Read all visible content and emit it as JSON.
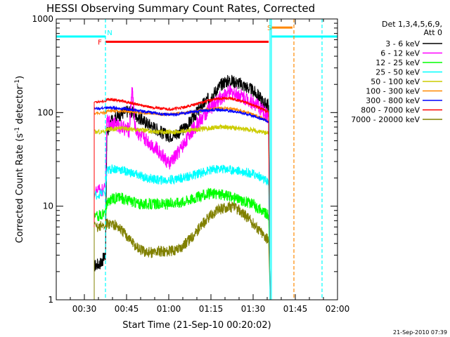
{
  "chart_data": {
    "type": "line",
    "title": "HESSI Observing Summary Count Rates, Corrected",
    "xlabel": "Start Time (21-Sep-10 00:20:02)",
    "ylabel_main": "Corrected Count Rate (s",
    "ylabel_sup1": "-1",
    "ylabel_mid": " detector",
    "ylabel_sup2": "-1",
    "ylabel_end": ")",
    "yscale": "log",
    "ylim": [
      1,
      1000
    ],
    "xlim_minutes": [
      20,
      120
    ],
    "x_tick_labels": [
      "00:30",
      "00:45",
      "01:00",
      "01:15",
      "01:30",
      "01:45",
      "02:00"
    ],
    "x_tick_minutes": [
      30,
      45,
      60,
      75,
      90,
      105,
      120
    ],
    "y_tick_labels": [
      "1",
      "10",
      "100",
      "1000"
    ],
    "y_tick_values": [
      1,
      10,
      100,
      1000
    ],
    "legend_title_line1": "Det 1,3,4,5,6,9,",
    "legend_title_line2": "Att 0",
    "timestamp": "21-Sep-2010 07:39",
    "series": [
      {
        "name": "3 - 6 keV",
        "color": "#000000",
        "points": [
          [
            33.5,
            2.3
          ],
          [
            36,
            2.5
          ],
          [
            37.5,
            3
          ],
          [
            38,
            60
          ],
          [
            40,
            85
          ],
          [
            42,
            92
          ],
          [
            44,
            100
          ],
          [
            46,
            105
          ],
          [
            48,
            95
          ],
          [
            50,
            85
          ],
          [
            52,
            78
          ],
          [
            54,
            72
          ],
          [
            56,
            66
          ],
          [
            58,
            60
          ],
          [
            60,
            56
          ],
          [
            62,
            58
          ],
          [
            64,
            62
          ],
          [
            66,
            70
          ],
          [
            68,
            82
          ],
          [
            70,
            100
          ],
          [
            72,
            120
          ],
          [
            74,
            140
          ],
          [
            76,
            160
          ],
          [
            78,
            190
          ],
          [
            80,
            215
          ],
          [
            82,
            220
          ],
          [
            84,
            210
          ],
          [
            86,
            200
          ],
          [
            88,
            185
          ],
          [
            90,
            170
          ],
          [
            92,
            150
          ],
          [
            94,
            125
          ],
          [
            95.5,
            120
          ]
        ]
      },
      {
        "name": "6 - 12 keV",
        "color": "#ff00ff",
        "points": [
          [
            33.5,
            14
          ],
          [
            37.5,
            15
          ],
          [
            38,
            80
          ],
          [
            40,
            78
          ],
          [
            42,
            72
          ],
          [
            44,
            68
          ],
          [
            46,
            65
          ],
          [
            47,
            190
          ],
          [
            48,
            70
          ],
          [
            50,
            55
          ],
          [
            52,
            52
          ],
          [
            54,
            45
          ],
          [
            56,
            40
          ],
          [
            58,
            34
          ],
          [
            60,
            28
          ],
          [
            62,
            33
          ],
          [
            64,
            40
          ],
          [
            66,
            50
          ],
          [
            68,
            62
          ],
          [
            70,
            75
          ],
          [
            72,
            88
          ],
          [
            74,
            105
          ],
          [
            76,
            120
          ],
          [
            78,
            140
          ],
          [
            80,
            155
          ],
          [
            82,
            165
          ],
          [
            84,
            160
          ],
          [
            86,
            150
          ],
          [
            88,
            140
          ],
          [
            90,
            128
          ],
          [
            92,
            115
          ],
          [
            94,
            100
          ],
          [
            95.5,
            88
          ]
        ]
      },
      {
        "name": "12 - 25 keV",
        "color": "#00ff00",
        "points": [
          [
            33.5,
            7.5
          ],
          [
            37.5,
            8.5
          ],
          [
            38,
            11
          ],
          [
            40,
            12
          ],
          [
            42,
            12.5
          ],
          [
            44,
            12
          ],
          [
            46,
            11.5
          ],
          [
            48,
            11
          ],
          [
            50,
            10.5
          ],
          [
            52,
            10.5
          ],
          [
            54,
            10.5
          ],
          [
            56,
            10.5
          ],
          [
            58,
            10.5
          ],
          [
            60,
            10.5
          ],
          [
            62,
            11
          ],
          [
            64,
            11
          ],
          [
            66,
            11.5
          ],
          [
            68,
            12
          ],
          [
            70,
            12.5
          ],
          [
            72,
            13
          ],
          [
            74,
            13.5
          ],
          [
            76,
            13.5
          ],
          [
            78,
            13.5
          ],
          [
            80,
            13
          ],
          [
            82,
            12.5
          ],
          [
            84,
            12
          ],
          [
            86,
            11.5
          ],
          [
            88,
            11
          ],
          [
            90,
            10.5
          ],
          [
            92,
            9.5
          ],
          [
            94,
            8.5
          ],
          [
            95.5,
            8
          ]
        ]
      },
      {
        "name": "25 - 50 keV",
        "color": "#00ffff",
        "points": [
          [
            33.5,
            13
          ],
          [
            37.5,
            14
          ],
          [
            38,
            24
          ],
          [
            40,
            25
          ],
          [
            42,
            25
          ],
          [
            44,
            24
          ],
          [
            46,
            23
          ],
          [
            48,
            22
          ],
          [
            50,
            21
          ],
          [
            52,
            20
          ],
          [
            54,
            19.5
          ],
          [
            56,
            19
          ],
          [
            58,
            19
          ],
          [
            60,
            19
          ],
          [
            62,
            19.5
          ],
          [
            64,
            20
          ],
          [
            66,
            20.5
          ],
          [
            68,
            21
          ],
          [
            70,
            22
          ],
          [
            72,
            23
          ],
          [
            74,
            24
          ],
          [
            76,
            24.5
          ],
          [
            78,
            25
          ],
          [
            80,
            25
          ],
          [
            82,
            24.5
          ],
          [
            84,
            24
          ],
          [
            86,
            23.5
          ],
          [
            88,
            23
          ],
          [
            90,
            22
          ],
          [
            92,
            21
          ],
          [
            94,
            19
          ],
          [
            95.5,
            18
          ]
        ]
      },
      {
        "name": "50 - 100 keV",
        "color": "#cccc00",
        "points": [
          [
            33.5,
            62
          ],
          [
            37.5,
            63
          ],
          [
            38,
            66
          ],
          [
            40,
            67
          ],
          [
            42,
            68
          ],
          [
            44,
            68
          ],
          [
            46,
            67
          ],
          [
            48,
            66
          ],
          [
            50,
            65
          ],
          [
            52,
            64
          ],
          [
            54,
            63
          ],
          [
            56,
            62
          ],
          [
            58,
            62
          ],
          [
            60,
            62
          ],
          [
            62,
            62
          ],
          [
            64,
            63
          ],
          [
            66,
            64
          ],
          [
            68,
            65
          ],
          [
            70,
            66
          ],
          [
            72,
            67
          ],
          [
            74,
            68
          ],
          [
            76,
            69
          ],
          [
            78,
            70
          ],
          [
            80,
            70
          ],
          [
            82,
            69
          ],
          [
            84,
            68
          ],
          [
            86,
            67
          ],
          [
            88,
            66
          ],
          [
            90,
            65
          ],
          [
            92,
            63
          ],
          [
            94,
            61
          ],
          [
            95.5,
            60
          ]
        ]
      },
      {
        "name": "100 - 300 keV",
        "color": "#ff8800",
        "points": [
          [
            33.5,
            98
          ],
          [
            37.5,
            100
          ],
          [
            38,
            103
          ],
          [
            40,
            104
          ],
          [
            42,
            104
          ],
          [
            44,
            103
          ],
          [
            46,
            102
          ],
          [
            48,
            101
          ],
          [
            50,
            100
          ],
          [
            52,
            99
          ],
          [
            54,
            98
          ],
          [
            56,
            97
          ],
          [
            58,
            96
          ],
          [
            60,
            96
          ],
          [
            62,
            97
          ],
          [
            64,
            98
          ],
          [
            66,
            100
          ],
          [
            68,
            102
          ],
          [
            70,
            104
          ],
          [
            72,
            106
          ],
          [
            74,
            108
          ],
          [
            76,
            110
          ],
          [
            78,
            112
          ],
          [
            80,
            112
          ],
          [
            82,
            111
          ],
          [
            84,
            108
          ],
          [
            86,
            104
          ],
          [
            88,
            100
          ],
          [
            90,
            96
          ],
          [
            92,
            90
          ],
          [
            94,
            85
          ],
          [
            95.5,
            80
          ]
        ]
      },
      {
        "name": "300 - 800 keV",
        "color": "#0000ff",
        "points": [
          [
            33.5,
            110
          ],
          [
            37.5,
            112
          ],
          [
            38,
            113
          ],
          [
            40,
            112
          ],
          [
            42,
            111
          ],
          [
            44,
            110
          ],
          [
            46,
            108
          ],
          [
            48,
            106
          ],
          [
            50,
            104
          ],
          [
            52,
            102
          ],
          [
            54,
            100
          ],
          [
            56,
            98
          ],
          [
            58,
            96
          ],
          [
            60,
            95
          ],
          [
            62,
            96
          ],
          [
            64,
            97
          ],
          [
            66,
            99
          ],
          [
            68,
            101
          ],
          [
            70,
            103
          ],
          [
            72,
            105
          ],
          [
            74,
            106
          ],
          [
            76,
            107
          ],
          [
            78,
            107
          ],
          [
            80,
            106
          ],
          [
            82,
            104
          ],
          [
            84,
            102
          ],
          [
            86,
            99
          ],
          [
            88,
            96
          ],
          [
            90,
            92
          ],
          [
            92,
            88
          ],
          [
            94,
            84
          ],
          [
            95.5,
            80
          ]
        ]
      },
      {
        "name": "800 - 7000 keV",
        "color": "#ff0000",
        "points": [
          [
            33.5,
            130
          ],
          [
            37.5,
            133
          ],
          [
            38,
            138
          ],
          [
            40,
            137
          ],
          [
            42,
            135
          ],
          [
            44,
            132
          ],
          [
            46,
            128
          ],
          [
            48,
            124
          ],
          [
            50,
            120
          ],
          [
            52,
            117
          ],
          [
            54,
            114
          ],
          [
            56,
            112
          ],
          [
            58,
            110
          ],
          [
            60,
            109
          ],
          [
            62,
            110
          ],
          [
            64,
            112
          ],
          [
            66,
            115
          ],
          [
            68,
            119
          ],
          [
            70,
            124
          ],
          [
            72,
            129
          ],
          [
            74,
            134
          ],
          [
            76,
            138
          ],
          [
            78,
            141
          ],
          [
            80,
            142
          ],
          [
            82,
            141
          ],
          [
            84,
            137
          ],
          [
            86,
            132
          ],
          [
            88,
            126
          ],
          [
            90,
            120
          ],
          [
            92,
            113
          ],
          [
            94,
            107
          ],
          [
            95.5,
            102
          ]
        ]
      },
      {
        "name": "7000 - 20000 keV",
        "color": "#808000",
        "points": [
          [
            33.5,
            6
          ],
          [
            37.5,
            6.2
          ],
          [
            38,
            6.5
          ],
          [
            40,
            6.5
          ],
          [
            42,
            6
          ],
          [
            44,
            5.2
          ],
          [
            46,
            4.5
          ],
          [
            48,
            3.8
          ],
          [
            50,
            3.4
          ],
          [
            52,
            3.2
          ],
          [
            54,
            3.2
          ],
          [
            56,
            3.3
          ],
          [
            58,
            3.3
          ],
          [
            60,
            3.3
          ],
          [
            62,
            3.4
          ],
          [
            64,
            3.6
          ],
          [
            66,
            4
          ],
          [
            68,
            4.6
          ],
          [
            70,
            5.4
          ],
          [
            72,
            6.4
          ],
          [
            74,
            7.4
          ],
          [
            76,
            8.4
          ],
          [
            78,
            9.2
          ],
          [
            80,
            9.7
          ],
          [
            82,
            9.8
          ],
          [
            84,
            9.4
          ],
          [
            86,
            8.6
          ],
          [
            88,
            7.6
          ],
          [
            90,
            6.6
          ],
          [
            92,
            5.6
          ],
          [
            94,
            4.8
          ],
          [
            95.5,
            4.4
          ]
        ]
      }
    ],
    "flag_bars": [
      {
        "label": "N",
        "color": "#00ffff",
        "x_start": 20,
        "x_end": 37.5,
        "y": 650,
        "label_x": 39,
        "label_y": 720
      },
      {
        "label": "N",
        "color": "#00ffff",
        "x_start": 96.5,
        "x_end": 120,
        "y": 650,
        "label_x": null,
        "label_y": null
      },
      {
        "label": "F",
        "color": "#ff0000",
        "x_start": 37.5,
        "x_end": 95.5,
        "y": 570,
        "label_x": 35.5,
        "label_y": 570
      },
      {
        "label": "S",
        "color": "#ff8800",
        "x_start": 96.5,
        "x_end": 104,
        "y": 810,
        "label_x": 95.8,
        "label_y": 810
      }
    ],
    "vertical_lines": [
      {
        "x": 37.5,
        "color": "#00ffff",
        "dashed": true
      },
      {
        "x": 96.0,
        "color": "#00ffff",
        "dashed": false
      },
      {
        "x": 96.5,
        "color": "#00ffff",
        "dashed": false
      },
      {
        "x": 104.5,
        "color": "#ff8800",
        "dashed": true
      },
      {
        "x": 114.5,
        "color": "#00ffff",
        "dashed": true
      }
    ]
  }
}
